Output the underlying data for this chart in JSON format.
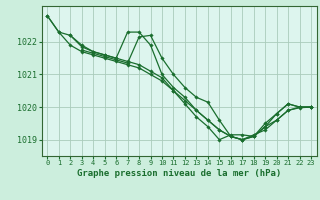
{
  "title": "Graphe pression niveau de la mer (hPa)",
  "bg_color": "#cceedd",
  "plot_bg_color": "#ddf5ee",
  "grid_color": "#aaccbb",
  "line_color": "#1a6e2e",
  "spine_color": "#336633",
  "xlim": [
    -0.5,
    23.5
  ],
  "ylim": [
    1018.5,
    1023.1
  ],
  "yticks": [
    1019,
    1020,
    1021,
    1022
  ],
  "xticks": [
    0,
    1,
    2,
    3,
    4,
    5,
    6,
    7,
    8,
    9,
    10,
    11,
    12,
    13,
    14,
    15,
    16,
    17,
    18,
    19,
    20,
    21,
    22,
    23
  ],
  "series": [
    {
      "x": [
        0,
        1,
        2,
        3,
        4,
        5,
        6,
        7,
        8,
        9,
        10,
        11,
        12,
        13,
        14,
        15,
        16,
        17,
        18,
        19,
        20,
        21,
        22,
        23
      ],
      "y": [
        1022.8,
        1022.3,
        1021.9,
        1021.7,
        1021.6,
        1021.5,
        1021.4,
        1021.3,
        1021.2,
        1021.0,
        1020.8,
        1020.5,
        1020.2,
        1019.9,
        1019.6,
        1019.3,
        1019.1,
        1019.0,
        1019.1,
        1019.4,
        1019.8,
        1020.1,
        1020.0,
        1020.0
      ]
    },
    {
      "x": [
        0,
        1,
        2,
        3,
        4,
        5,
        6,
        7,
        8,
        9,
        10,
        11,
        12,
        13,
        14,
        15,
        16,
        17,
        18,
        19,
        20,
        21,
        22,
        23
      ],
      "y": [
        1022.8,
        1022.3,
        1022.2,
        1021.9,
        1021.7,
        1021.6,
        1021.5,
        1022.3,
        1022.3,
        1021.9,
        1021.0,
        1020.6,
        1020.3,
        1019.9,
        1019.6,
        1019.3,
        1019.1,
        1019.0,
        1019.1,
        1019.5,
        1019.8,
        1020.1,
        1020.0,
        1020.0
      ]
    },
    {
      "x": [
        2,
        3,
        4,
        5,
        6,
        7,
        8,
        9,
        10,
        11,
        12,
        13,
        14,
        15,
        16,
        17,
        18,
        19,
        20,
        21,
        22,
        23
      ],
      "y": [
        1022.2,
        1021.85,
        1021.7,
        1021.6,
        1021.5,
        1021.4,
        1021.3,
        1021.1,
        1020.9,
        1020.5,
        1020.1,
        1019.7,
        1019.4,
        1019.0,
        1019.15,
        1019.15,
        1019.1,
        1019.4,
        1019.6,
        1019.9,
        1019.98,
        1020.0
      ]
    },
    {
      "x": [
        3,
        4,
        5,
        6,
        7,
        8,
        9,
        10,
        11,
        12,
        13,
        14,
        15,
        16,
        17,
        18,
        19,
        20,
        21,
        22,
        23
      ],
      "y": [
        1021.75,
        1021.65,
        1021.55,
        1021.45,
        1021.35,
        1022.15,
        1022.2,
        1021.5,
        1021.0,
        1020.6,
        1020.3,
        1020.15,
        1019.6,
        1019.1,
        1019.0,
        1019.15,
        1019.3,
        1019.6,
        1019.9,
        1020.0,
        1020.0
      ]
    }
  ],
  "xlabel_fontsize": 6.5,
  "ytick_fontsize": 6.0,
  "xtick_fontsize": 5.0
}
